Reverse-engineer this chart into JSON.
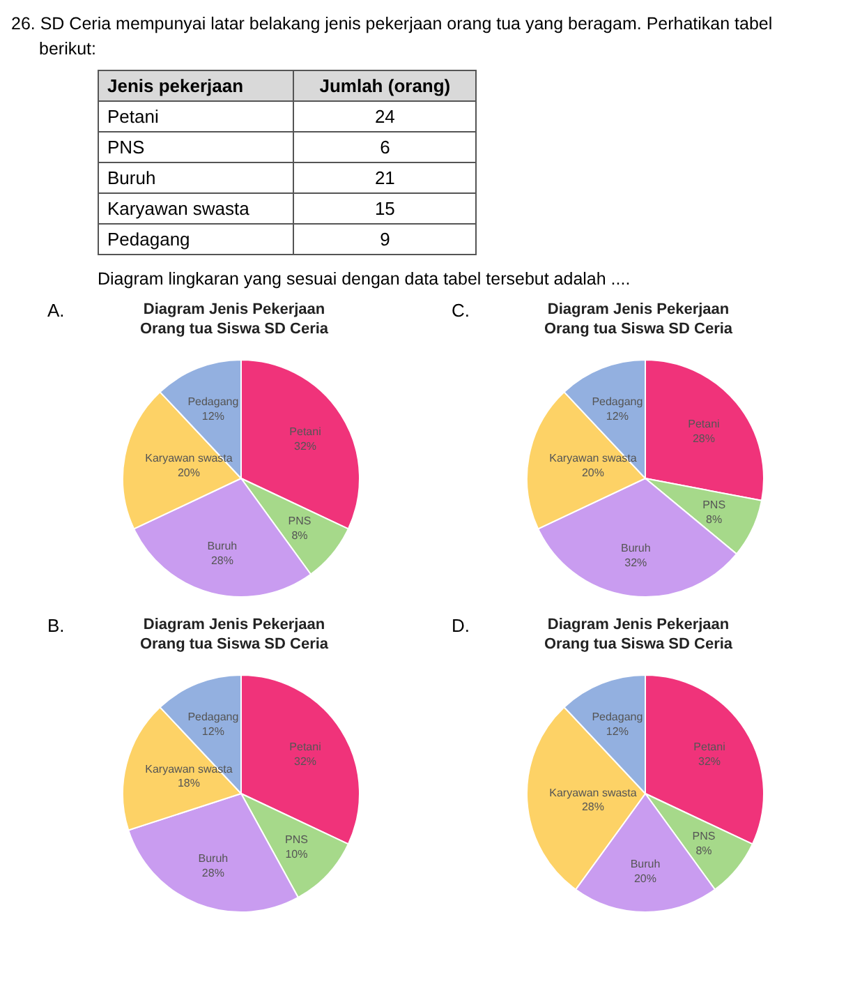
{
  "chart_data": [
    {
      "type": "other",
      "title": "26.  SD Ceria mempunyai latar belakang jenis pekerjaan orang tua yang beragam. Perhatikan tabel berikut:",
      "xlabel": "Jenis pekerjaan",
      "ylabel": "Jumlah (orang)",
      "categories": [
        "Petani",
        "PNS",
        "Buruh",
        "Karyawan swasta",
        "Pedagang"
      ],
      "values": [
        24,
        6,
        21,
        15,
        9
      ],
      "data_labels": true,
      "annotations": [
        "Diagram lingkaran yang sesuai dengan data tabel tersebut adalah ...."
      ]
    },
    {
      "type": "pie",
      "title": "Diagram Jenis Pekerjaan\nOrang tua Siswa SD Ceria",
      "annotations": [
        "A."
      ],
      "categories": [
        "Petani",
        "PNS",
        "Buruh",
        "Karyawan swasta",
        "Pedagang"
      ],
      "values": [
        32,
        8,
        28,
        20,
        12
      ],
      "value_labels": [
        "32%",
        "8%",
        "28%",
        "20%",
        "12%"
      ],
      "colors": [
        "#f0337a",
        "#a6d98a",
        "#c99cf0",
        "#fdd266",
        "#93b0e0"
      ]
    },
    {
      "type": "pie",
      "title": "Diagram Jenis Pekerjaan\nOrang tua Siswa SD Ceria",
      "annotations": [
        "C."
      ],
      "categories": [
        "Petani",
        "PNS",
        "Buruh",
        "Karyawan swasta",
        "Pedagang"
      ],
      "values": [
        28,
        8,
        32,
        20,
        12
      ],
      "value_labels": [
        "28%",
        "8%",
        "32%",
        "20%",
        "12%"
      ],
      "colors": [
        "#f0337a",
        "#a6d98a",
        "#c99cf0",
        "#fdd266",
        "#93b0e0"
      ]
    },
    {
      "type": "pie",
      "title": "Diagram Jenis Pekerjaan\nOrang tua Siswa SD Ceria",
      "annotations": [
        "B."
      ],
      "categories": [
        "Petani",
        "PNS",
        "Buruh",
        "Karyawan swasta",
        "Pedagang"
      ],
      "values": [
        32,
        10,
        28,
        18,
        12
      ],
      "value_labels": [
        "32%",
        "10%",
        "28%",
        "18%",
        "12%"
      ],
      "colors": [
        "#f0337a",
        "#a6d98a",
        "#c99cf0",
        "#fdd266",
        "#93b0e0"
      ]
    },
    {
      "type": "pie",
      "title": "Diagram Jenis Pekerjaan\nOrang tua Siswa SD Ceria",
      "annotations": [
        "D."
      ],
      "categories": [
        "Petani",
        "PNS",
        "Buruh",
        "Karyawan swasta",
        "Pedagang"
      ],
      "values": [
        32,
        8,
        20,
        28,
        12
      ],
      "value_labels": [
        "32%",
        "8%",
        "20%",
        "28%",
        "12%"
      ],
      "colors": [
        "#f0337a",
        "#a6d98a",
        "#c99cf0",
        "#fdd266",
        "#93b0e0"
      ]
    }
  ]
}
